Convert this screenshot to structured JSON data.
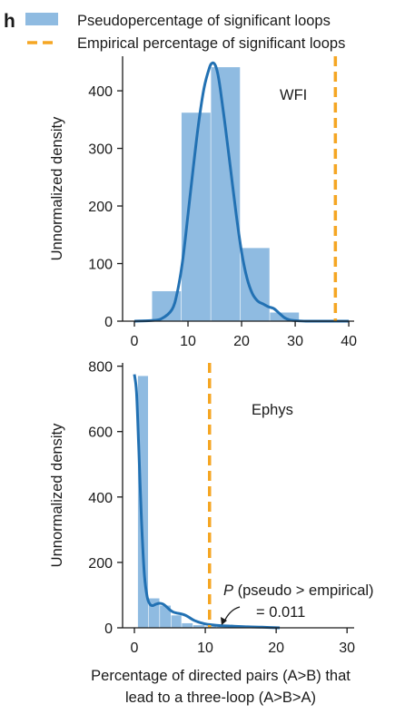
{
  "figure": {
    "panel_letter": "h",
    "xlabel_line1": "Percentage of directed pairs (A>B) that",
    "xlabel_line2": "lead to a three-loop  (A>B>A)",
    "legend": [
      {
        "label": "Pseudopercentage of significant loops",
        "color": "#8fbbe1",
        "kind": "patch"
      },
      {
        "label": "Empirical percentage of significant loops",
        "color": "#f5a623",
        "kind": "dashed-line"
      }
    ]
  },
  "colors": {
    "histogram": "#8fbbe1",
    "kde": "#2271b3",
    "empirical": "#f5a623",
    "axis": "#1a1a1a"
  },
  "chart_data": [
    {
      "type": "bar",
      "name": "WFI",
      "label": "WFI",
      "ylabel": "Unnormalized density",
      "xlim": [
        -1,
        41
      ],
      "ylim": [
        0,
        460
      ],
      "xticks": [
        0,
        10,
        20,
        30,
        40
      ],
      "yticks": [
        0,
        100,
        200,
        300,
        400
      ],
      "histogram": {
        "bin_edges": [
          3.3,
          8.8,
          14.3,
          19.8,
          25.3,
          30.8
        ],
        "values": [
          52,
          362,
          441,
          127,
          15
        ]
      },
      "kde": {
        "x": [
          0,
          3,
          5,
          7,
          8,
          9,
          10,
          11,
          12,
          13,
          14,
          14.5,
          15,
          15.5,
          16,
          17,
          18,
          19,
          20,
          21,
          22,
          23,
          24,
          25,
          26,
          27,
          28,
          29,
          30,
          32,
          35,
          40
        ],
        "y": [
          0,
          1,
          4,
          20,
          50,
          105,
          185,
          268,
          345,
          405,
          440,
          448,
          446,
          432,
          405,
          335,
          260,
          185,
          120,
          75,
          48,
          35,
          30,
          25,
          22,
          14,
          6,
          2,
          1,
          0,
          0,
          0
        ]
      },
      "empirical_percentage": 37.5,
      "grid": false
    },
    {
      "type": "bar",
      "name": "Ephys",
      "label": "Ephys",
      "ylabel": "Unnormalized density",
      "xlim": [
        -1,
        31
      ],
      "ylim": [
        0,
        810
      ],
      "xticks": [
        0,
        10,
        20,
        30
      ],
      "yticks": [
        0,
        200,
        400,
        600,
        800
      ],
      "histogram": {
        "bin_edges": [
          0.5,
          2.0,
          3.6,
          5.2,
          6.7,
          8.3,
          10.0,
          11.6,
          13.2,
          14.8,
          16.4,
          18.0,
          20.6
        ],
        "values": [
          770,
          90,
          68,
          38,
          14,
          8,
          4,
          3,
          2,
          1,
          1,
          1
        ]
      },
      "kde": {
        "x": [
          0,
          0.3,
          0.6,
          1.0,
          1.4,
          1.8,
          2.2,
          2.6,
          3.0,
          3.5,
          4.0,
          4.5,
          5.0,
          5.5,
          6.0,
          6.5,
          7.0,
          7.5,
          8.0,
          8.5,
          9.0,
          10.0,
          11.0,
          12.0,
          14.0,
          16.0,
          18.0,
          20.5
        ],
        "y": [
          775,
          720,
          560,
          330,
          165,
          95,
          72,
          68,
          72,
          75,
          73,
          65,
          55,
          48,
          45,
          43,
          40,
          35,
          28,
          22,
          18,
          12,
          9,
          7,
          5,
          3,
          2,
          0
        ]
      },
      "empirical_percentage": 10.6,
      "grid": false,
      "annotation": {
        "italic": "P",
        "line1": " (pseudo > empirical)",
        "line2": "= 0.011"
      }
    }
  ]
}
